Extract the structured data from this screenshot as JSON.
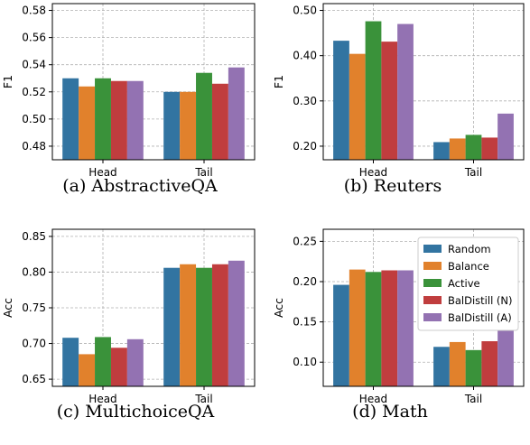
{
  "series_colors": [
    "#3274a1",
    "#e1812c",
    "#3a923a",
    "#c03d3e",
    "#9372b2"
  ],
  "legend_labels": [
    "Random",
    "Balance",
    "Active",
    "BalDistill (N)",
    "BalDistill (A)"
  ],
  "chart_data": [
    {
      "type": "bar",
      "caption": "(a) AbstractiveQA",
      "ylabel": "F1",
      "categories": [
        "Head",
        "Tail"
      ],
      "ylim": [
        0.47,
        0.585
      ],
      "yticks": [
        "0.48",
        "0.50",
        "0.52",
        "0.54",
        "0.56",
        "0.58"
      ],
      "series": [
        {
          "values": [
            0.53,
            0.52
          ]
        },
        {
          "values": [
            0.524,
            0.52
          ]
        },
        {
          "values": [
            0.53,
            0.534
          ]
        },
        {
          "values": [
            0.528,
            0.526
          ]
        },
        {
          "values": [
            0.528,
            0.538
          ]
        }
      ],
      "grid": true
    },
    {
      "type": "bar",
      "caption": "(b) Reuters",
      "ylabel": "F1",
      "categories": [
        "Head",
        "Tail"
      ],
      "ylim": [
        0.17,
        0.515
      ],
      "yticks": [
        "0.20",
        "0.30",
        "0.40",
        "0.50"
      ],
      "series": [
        {
          "values": [
            0.433,
            0.209
          ]
        },
        {
          "values": [
            0.404,
            0.217
          ]
        },
        {
          "values": [
            0.476,
            0.225
          ]
        },
        {
          "values": [
            0.431,
            0.219
          ]
        },
        {
          "values": [
            0.47,
            0.272
          ]
        }
      ],
      "grid": true
    },
    {
      "type": "bar",
      "caption": "(c) MultichoiceQA",
      "ylabel": "Acc",
      "categories": [
        "Head",
        "Tail"
      ],
      "ylim": [
        0.64,
        0.86
      ],
      "yticks": [
        "0.65",
        "0.70",
        "0.75",
        "0.80",
        "0.85"
      ],
      "series": [
        {
          "values": [
            0.708,
            0.806
          ]
        },
        {
          "values": [
            0.685,
            0.811
          ]
        },
        {
          "values": [
            0.709,
            0.806
          ]
        },
        {
          "values": [
            0.694,
            0.811
          ]
        },
        {
          "values": [
            0.706,
            0.816
          ]
        }
      ],
      "grid": true
    },
    {
      "type": "bar",
      "caption": "(d) Math",
      "ylabel": "Acc",
      "categories": [
        "Head",
        "Tail"
      ],
      "ylim": [
        0.07,
        0.265
      ],
      "yticks": [
        "0.10",
        "0.15",
        "0.20",
        "0.25"
      ],
      "series": [
        {
          "name": "Random",
          "values": [
            0.196,
            0.119
          ]
        },
        {
          "name": "Balance",
          "values": [
            0.215,
            0.125
          ]
        },
        {
          "name": "Active",
          "values": [
            0.212,
            0.115
          ]
        },
        {
          "name": "BalDistill (N)",
          "values": [
            0.214,
            0.126
          ]
        },
        {
          "name": "BalDistill (A)",
          "values": [
            0.214,
            0.145
          ]
        }
      ],
      "legend": "top-right",
      "grid": true
    }
  ]
}
